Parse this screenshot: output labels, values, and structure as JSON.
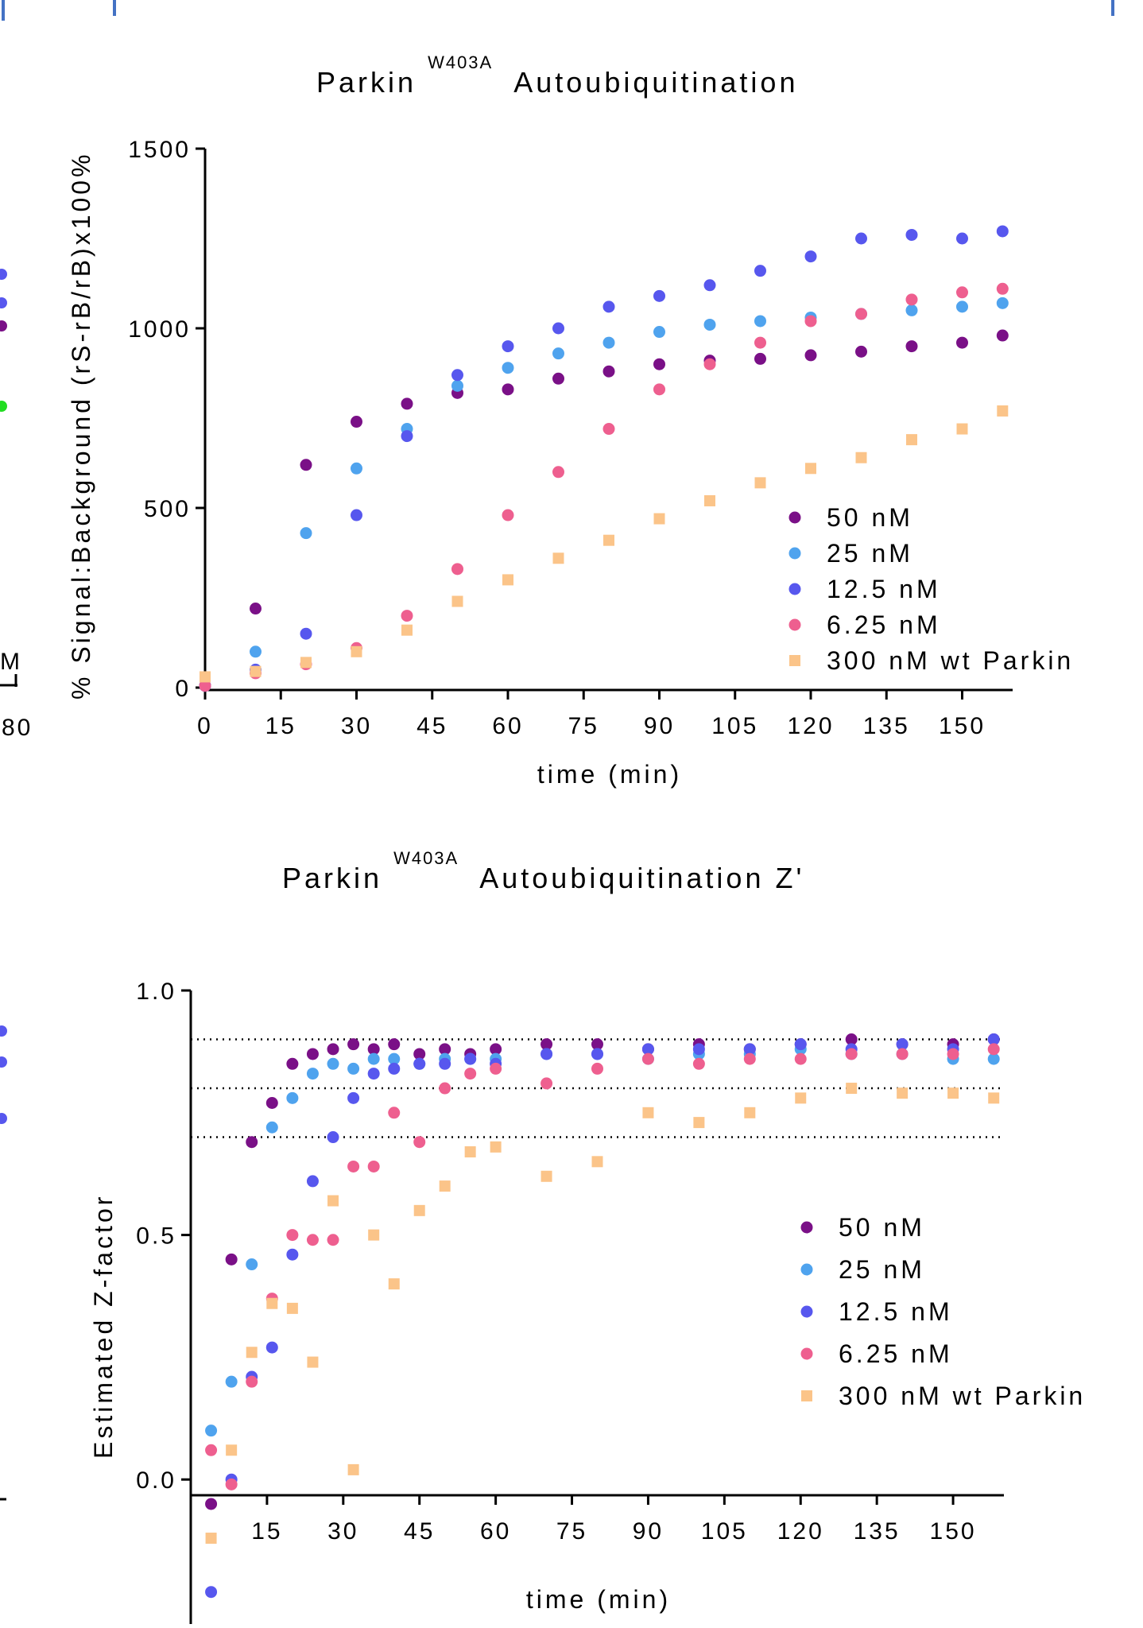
{
  "colors": {
    "c50": "#7a1087",
    "c25": "#4fa3ee",
    "c12": "#5757ee",
    "c6": "#ee5f8f",
    "cwt": "#fbc489",
    "frame": "#4472c4",
    "partial_green": "#22dd22"
  },
  "partial_left": {
    "text_m": "M",
    "text_80": "80"
  },
  "chart_data": [
    {
      "type": "scatter",
      "title": "Parkin",
      "title_superscript": "W403A",
      "title_rest": "Autoubiquitination",
      "xlabel": "time (min)",
      "ylabel": "% Signal:Background (rS-rB/rB)x100%",
      "xlim": [
        0,
        160
      ],
      "ylim": [
        0,
        1500
      ],
      "x_ticks": [
        "0",
        "15",
        "30",
        "45",
        "60",
        "75",
        "90",
        "105",
        "120",
        "135",
        "150"
      ],
      "y_ticks": [
        "0",
        "500",
        "1000",
        "1500"
      ],
      "legend_position": "bottom-right",
      "x": [
        0,
        10,
        20,
        30,
        40,
        50,
        60,
        70,
        80,
        90,
        100,
        110,
        120,
        130,
        140,
        150,
        158
      ],
      "series": [
        {
          "name": "50 nM",
          "key": "c50",
          "marker": "circle",
          "values": [
            5,
            220,
            620,
            740,
            790,
            820,
            830,
            860,
            880,
            900,
            910,
            915,
            925,
            935,
            950,
            960,
            980
          ]
        },
        {
          "name": "25 nM",
          "key": "c25",
          "marker": "circle",
          "values": [
            5,
            100,
            430,
            610,
            720,
            840,
            890,
            930,
            960,
            990,
            1010,
            1020,
            1030,
            1040,
            1050,
            1060,
            1070
          ]
        },
        {
          "name": "12.5 nM",
          "key": "c12",
          "marker": "circle",
          "values": [
            5,
            50,
            150,
            480,
            700,
            870,
            950,
            1000,
            1060,
            1090,
            1120,
            1160,
            1200,
            1250,
            1260,
            1250,
            1270
          ]
        },
        {
          "name": "6.25 nM",
          "key": "c6",
          "marker": "circle",
          "values": [
            5,
            40,
            65,
            110,
            200,
            330,
            480,
            600,
            720,
            830,
            900,
            960,
            1020,
            1040,
            1080,
            1100,
            1110
          ]
        },
        {
          "name": "300 nM wt Parkin",
          "key": "cwt",
          "marker": "square",
          "values": [
            30,
            45,
            70,
            100,
            160,
            240,
            300,
            360,
            410,
            470,
            520,
            570,
            610,
            640,
            690,
            720,
            770
          ]
        }
      ]
    },
    {
      "type": "scatter",
      "title": "Parkin",
      "title_superscript": "W403A",
      "title_rest": "Autoubiquitination Z'",
      "xlabel": "time (min)",
      "ylabel": "Estimated Z-factor",
      "xlim": [
        0,
        160
      ],
      "ylim": [
        -0.25,
        1.0
      ],
      "x_ticks": [
        "15",
        "30",
        "45",
        "60",
        "75",
        "90",
        "105",
        "120",
        "135",
        "150"
      ],
      "y_ticks": [
        "0.0",
        "0.5",
        "1.0"
      ],
      "reference_lines": [
        0.9,
        0.8,
        0.7
      ],
      "legend_position": "middle-right",
      "x": [
        4,
        8,
        12,
        16,
        20,
        24,
        28,
        32,
        36,
        40,
        45,
        50,
        55,
        60,
        70,
        80,
        90,
        100,
        110,
        120,
        130,
        140,
        150,
        158
      ],
      "series": [
        {
          "name": "50 nM",
          "key": "c50",
          "marker": "circle",
          "values": [
            -0.05,
            0.45,
            0.69,
            0.77,
            0.85,
            0.87,
            0.88,
            0.89,
            0.88,
            0.89,
            0.87,
            0.88,
            0.87,
            0.88,
            0.89,
            0.89,
            0.88,
            0.89,
            0.88,
            0.89,
            0.9,
            0.89,
            0.89,
            0.9
          ]
        },
        {
          "name": "25 nM",
          "key": "c25",
          "marker": "circle",
          "values": [
            0.1,
            0.2,
            0.44,
            0.72,
            0.78,
            0.83,
            0.85,
            0.84,
            0.86,
            0.86,
            0.85,
            0.86,
            0.86,
            0.86,
            0.87,
            0.87,
            0.86,
            0.87,
            0.87,
            0.88,
            0.87,
            0.87,
            0.86,
            0.86
          ]
        },
        {
          "name": "12.5 nM",
          "key": "c12",
          "marker": "circle",
          "values": [
            -0.23,
            0.0,
            0.21,
            0.27,
            0.46,
            0.61,
            0.7,
            0.78,
            0.83,
            0.84,
            0.85,
            0.85,
            0.86,
            0.85,
            0.87,
            0.87,
            0.88,
            0.88,
            0.88,
            0.89,
            0.88,
            0.89,
            0.88,
            0.9
          ]
        },
        {
          "name": "6.25 nM",
          "key": "c6",
          "marker": "circle",
          "values": [
            0.06,
            -0.01,
            0.2,
            0.37,
            0.5,
            0.49,
            0.49,
            0.64,
            0.64,
            0.75,
            0.69,
            0.8,
            0.83,
            0.84,
            0.81,
            0.84,
            0.86,
            0.85,
            0.86,
            0.86,
            0.87,
            0.87,
            0.87,
            0.88
          ]
        },
        {
          "name": "300 nM wt Parkin",
          "key": "cwt",
          "marker": "square",
          "values": [
            -0.12,
            0.06,
            0.26,
            0.36,
            0.35,
            0.24,
            0.57,
            0.02,
            0.5,
            0.4,
            0.55,
            0.6,
            0.67,
            0.68,
            0.62,
            0.65,
            0.75,
            0.73,
            0.75,
            0.78,
            0.8,
            0.79,
            0.79,
            0.78
          ]
        }
      ]
    }
  ]
}
